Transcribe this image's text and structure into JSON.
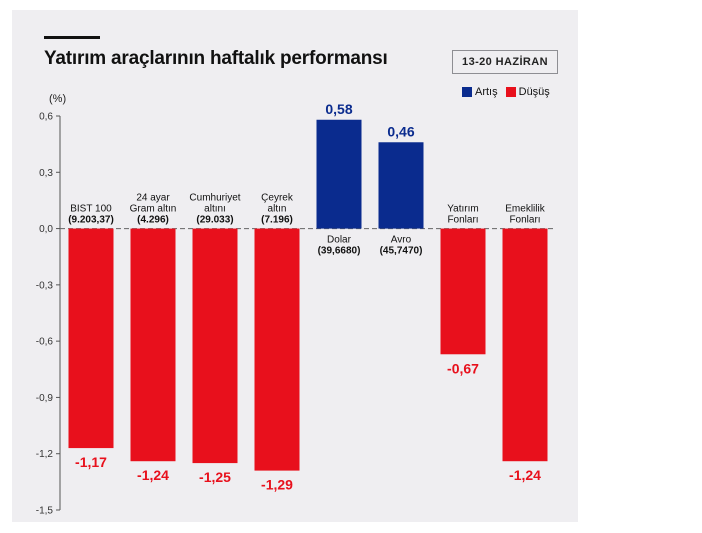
{
  "title": "Yatırım araçlarının haftalık performansı",
  "date_badge": "13-20 HAZİRAN",
  "legend": [
    {
      "label": "Artış",
      "color": "#0a2b8e"
    },
    {
      "label": "Düşüş",
      "color": "#e8101c"
    }
  ],
  "chart_data": {
    "type": "bar",
    "title": "Yatırım araçlarının haftalık performansı",
    "ylabel": "(%)",
    "ylim": [
      -1.5,
      0.6
    ],
    "yticks": [
      "0,6",
      "0,3",
      "0,0",
      "-0,3",
      "-0,6",
      "-0,9",
      "-1,2",
      "-1,5"
    ],
    "ytick_values": [
      0.6,
      0.3,
      0.0,
      -0.3,
      -0.6,
      -0.9,
      -1.2,
      -1.5
    ],
    "positive_color": "#0a2b8e",
    "negative_color": "#e8101c",
    "categories": [
      {
        "lines": [
          "BIST 100",
          "(9.203,37)"
        ],
        "value": -1.17,
        "value_label": "-1,17"
      },
      {
        "lines": [
          "24 ayar",
          "Gram altın",
          "(4.296)"
        ],
        "value": -1.24,
        "value_label": "-1,24"
      },
      {
        "lines": [
          "Cumhuriyet",
          "altını",
          "(29.033)"
        ],
        "value": -1.25,
        "value_label": "-1,25"
      },
      {
        "lines": [
          "Çeyrek",
          "altın",
          "(7.196)"
        ],
        "value": -1.29,
        "value_label": "-1,29"
      },
      {
        "lines": [
          "Dolar",
          "(39,6680)"
        ],
        "value": 0.58,
        "value_label": "0,58"
      },
      {
        "lines": [
          "Avro",
          "(45,7470)"
        ],
        "value": 0.46,
        "value_label": "0,46"
      },
      {
        "lines": [
          "Yatırım",
          "Fonları"
        ],
        "value": -0.67,
        "value_label": "-0,67"
      },
      {
        "lines": [
          "Emeklilik",
          "Fonları"
        ],
        "value": -1.24,
        "value_label": "-1,24"
      }
    ]
  }
}
